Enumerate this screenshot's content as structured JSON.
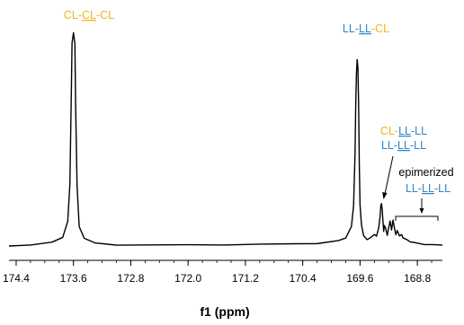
{
  "colors": {
    "cl": "#F2B21B",
    "ll": "#2E86C8",
    "ink": "#000000"
  },
  "chart_data": {
    "type": "line",
    "xlabel": "f1 (ppm)",
    "xlim": [
      174.5,
      168.45
    ],
    "x_reversed": true,
    "x_ticks": [
      "174.4",
      "173.6",
      "172.8",
      "172.0",
      "171.2",
      "170.4",
      "169.6",
      "168.8"
    ],
    "y_axis_shown": false,
    "grid": false,
    "peaks": [
      {
        "ppm": 173.6,
        "relative_height": 1.05,
        "label": "CL-CL-CL"
      },
      {
        "ppm": 169.63,
        "relative_height": 0.92,
        "label": "LL-LL-CL"
      },
      {
        "ppm": 169.29,
        "relative_height": 0.21,
        "label": "CL-LL-LL / LL-LL-LL"
      },
      {
        "ppm": 169.14,
        "relative_height": 0.13,
        "label": "epimerized LL-LL-LL"
      }
    ],
    "series": [
      {
        "x": [
          174.5,
          174.2,
          173.9,
          173.75,
          173.68,
          173.65,
          173.63,
          173.62,
          173.6,
          173.58,
          173.57,
          173.55,
          173.52,
          173.45,
          173.3,
          173.0,
          172.5,
          172.0,
          171.5,
          171.0,
          170.5,
          170.2,
          169.9,
          169.8,
          169.72,
          169.69,
          169.67,
          169.66,
          169.65,
          169.64,
          169.63,
          169.62,
          169.61,
          169.6,
          169.58,
          169.55,
          169.5,
          169.45,
          169.4,
          169.37,
          169.34,
          169.32,
          169.31,
          169.3,
          169.29,
          169.28,
          169.27,
          169.26,
          169.24,
          169.22,
          169.2,
          169.18,
          169.16,
          169.14,
          169.12,
          169.1,
          169.08,
          169.05,
          169.02,
          169.0,
          168.95,
          168.9,
          168.85,
          168.8,
          168.7,
          168.6,
          168.45
        ],
        "y": [
          0.0,
          0.005,
          0.015,
          0.04,
          0.12,
          0.3,
          0.75,
          1.0,
          1.05,
          1.0,
          0.7,
          0.3,
          0.1,
          0.04,
          0.015,
          0.006,
          0.003,
          0.003,
          0.004,
          0.005,
          0.008,
          0.012,
          0.025,
          0.04,
          0.1,
          0.2,
          0.45,
          0.7,
          0.85,
          0.92,
          0.88,
          0.7,
          0.4,
          0.2,
          0.1,
          0.05,
          0.03,
          0.04,
          0.06,
          0.05,
          0.09,
          0.15,
          0.2,
          0.21,
          0.18,
          0.12,
          0.07,
          0.1,
          0.08,
          0.05,
          0.09,
          0.12,
          0.08,
          0.13,
          0.09,
          0.06,
          0.08,
          0.05,
          0.06,
          0.04,
          0.03,
          0.02,
          0.015,
          0.01,
          0.006,
          0.004,
          0.003
        ]
      }
    ],
    "annotations": {
      "cl_cl_cl": {
        "p1": "CL-",
        "p2": "CL",
        "p3": "-CL"
      },
      "ll_ll_cl": {
        "p1": "LL-",
        "p2": "LL",
        "p3": "-CL"
      },
      "cl_ll_ll": {
        "p1": "CL-",
        "p2": "LL",
        "p3": "-LL"
      },
      "ll_ll_ll": {
        "p1": "LL-",
        "p2": "LL",
        "p3": "-LL"
      },
      "epimerized": "epimerized",
      "epi_ll_ll_ll": {
        "p1": "LL-",
        "p2": "LL",
        "p3": "-LL"
      }
    }
  }
}
